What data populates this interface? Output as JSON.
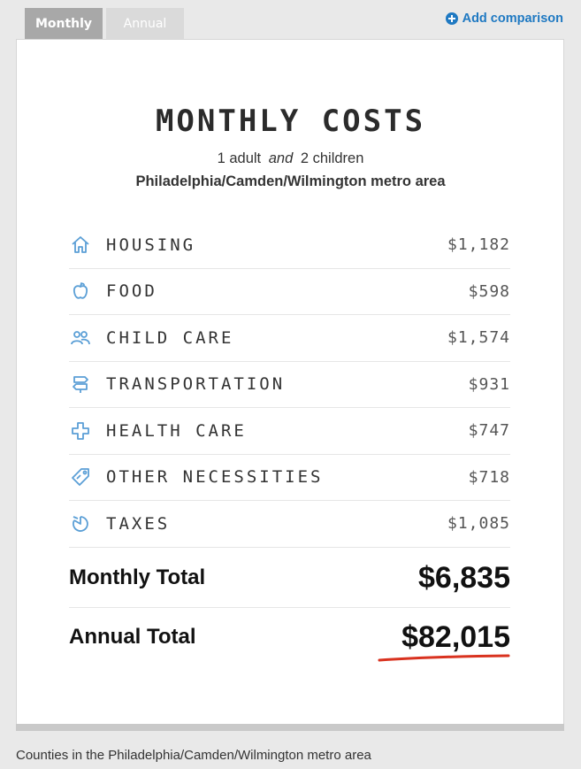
{
  "tabs": [
    {
      "label": "Monthly"
    },
    {
      "label": "Annual"
    }
  ],
  "add_comparison": "Add comparison",
  "title": "MONTHLY COSTS",
  "family": {
    "adults": "1 adult",
    "conj": "and",
    "children": "2 children"
  },
  "region": "Philadelphia/Camden/Wilmington metro area",
  "rows": [
    {
      "label": "HOUSING",
      "value": "$1,182",
      "icon": "house-icon"
    },
    {
      "label": "FOOD",
      "value": "$598",
      "icon": "apple-icon"
    },
    {
      "label": "CHILD CARE",
      "value": "$1,574",
      "icon": "people-icon"
    },
    {
      "label": "TRANSPORTATION",
      "value": "$931",
      "icon": "signpost-icon"
    },
    {
      "label": "HEALTH CARE",
      "value": "$747",
      "icon": "cross-icon"
    },
    {
      "label": "OTHER NECESSITIES",
      "value": "$718",
      "icon": "tag-icon"
    },
    {
      "label": "TAXES",
      "value": "$1,085",
      "icon": "pie-icon"
    }
  ],
  "monthly_total": {
    "label": "Monthly Total",
    "value": "$6,835"
  },
  "annual_total": {
    "label": "Annual Total",
    "value": "$82,015"
  },
  "footer": "Counties in the Philadelphia/Camden/Wilmington metro area",
  "colors": {
    "icon": "#5b9fd6",
    "link": "#1f79c2",
    "underline": "#d9321f"
  }
}
